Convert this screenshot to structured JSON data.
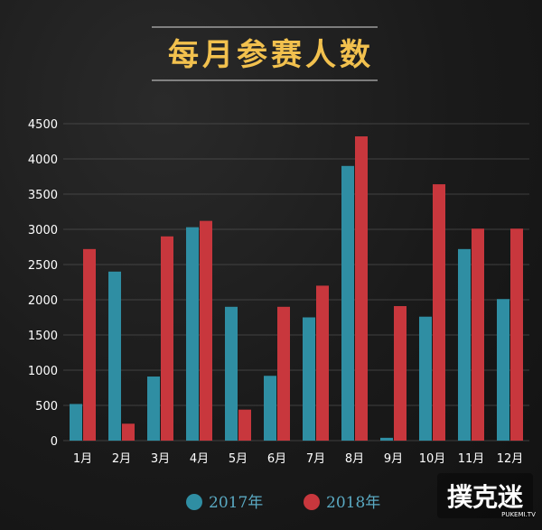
{
  "chart_data": {
    "type": "bar",
    "title": "每月参赛人数",
    "categories": [
      "1月",
      "2月",
      "3月",
      "4月",
      "5月",
      "6月",
      "7月",
      "8月",
      "9月",
      "10月",
      "11月",
      "12月"
    ],
    "series": [
      {
        "name": "2017年",
        "color": "#2f8ea3",
        "values": [
          520,
          2400,
          910,
          3030,
          1900,
          920,
          1750,
          3900,
          40,
          1760,
          2720,
          2010
        ]
      },
      {
        "name": "2018年",
        "color": "#c8373d",
        "values": [
          2720,
          240,
          2900,
          3120,
          440,
          1900,
          2200,
          4320,
          1910,
          3640,
          3010,
          3010
        ]
      }
    ],
    "ylim": [
      0,
      4500
    ],
    "yticks": [
      0,
      500,
      1000,
      1500,
      2000,
      2500,
      3000,
      3500,
      4000,
      4500
    ],
    "grid": true,
    "legend_position": "bottom"
  },
  "watermark": {
    "text": "撲克迷",
    "sub": "PUKEMI.TV"
  }
}
